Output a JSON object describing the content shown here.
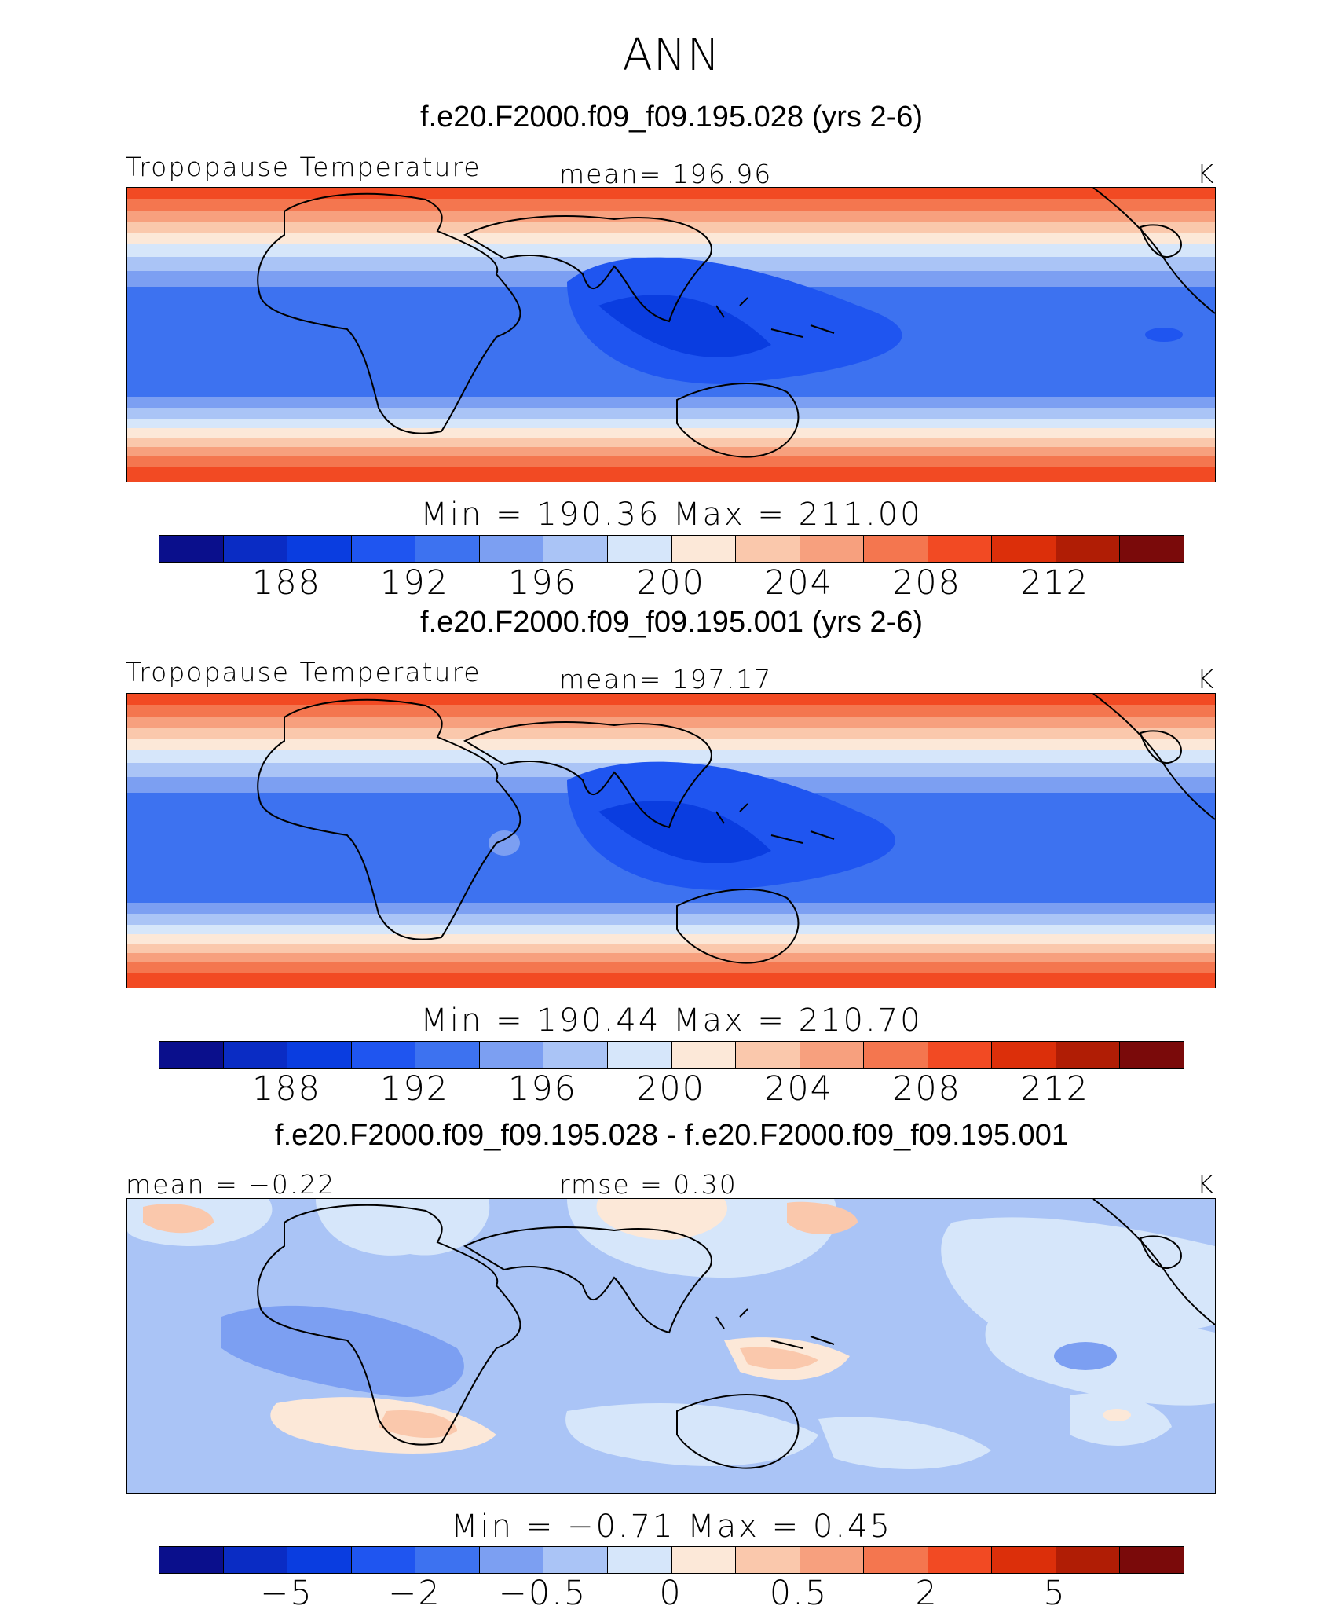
{
  "title": "ANN",
  "colorbar_colors": [
    "#0a0f8c",
    "#0a2cc4",
    "#0a3de0",
    "#1f55f0",
    "#3d72f0",
    "#7c9ff2",
    "#aac4f6",
    "#d6e6fa",
    "#fce8d8",
    "#fac8ac",
    "#f7a07e",
    "#f4764f",
    "#f24a23",
    "#dc2f0a",
    "#b01d05",
    "#7a0a0a"
  ],
  "panels": [
    {
      "case_title": "f.e20.F2000.f09_f09.195.028 (yrs 2-6)",
      "var_label": "Tropopause Temperature",
      "mean_label": "mean= 196.96",
      "units": "K",
      "min_max": "Min = 190.36 Max = 211.00",
      "tick_labels": [
        "188",
        "192",
        "196",
        "200",
        "204",
        "208",
        "212"
      ],
      "stats": {
        "min": 190.36,
        "max": 211.0,
        "mean": 196.96
      }
    },
    {
      "case_title": "f.e20.F2000.f09_f09.195.001 (yrs 2-6)",
      "var_label": "Tropopause Temperature",
      "mean_label": "mean= 197.17",
      "units": "K",
      "min_max": "Min = 190.44 Max = 210.70",
      "tick_labels": [
        "188",
        "192",
        "196",
        "200",
        "204",
        "208",
        "212"
      ],
      "stats": {
        "min": 190.44,
        "max": 210.7,
        "mean": 197.17
      }
    },
    {
      "case_title": "f.e20.F2000.f09_f09.195.028 - f.e20.F2000.f09_f09.195.001",
      "mean_label": "mean =  −0.22",
      "rmse_label": "rmse =   0.30",
      "units": "K",
      "min_max": "Min =  −0.71 Max =   0.45",
      "tick_labels": [
        "−5",
        "−2",
        "−0.5",
        "0",
        "0.5",
        "2",
        "5"
      ],
      "stats": {
        "min": -0.71,
        "max": 0.45,
        "mean": -0.22,
        "rmse": 0.3
      }
    }
  ]
}
